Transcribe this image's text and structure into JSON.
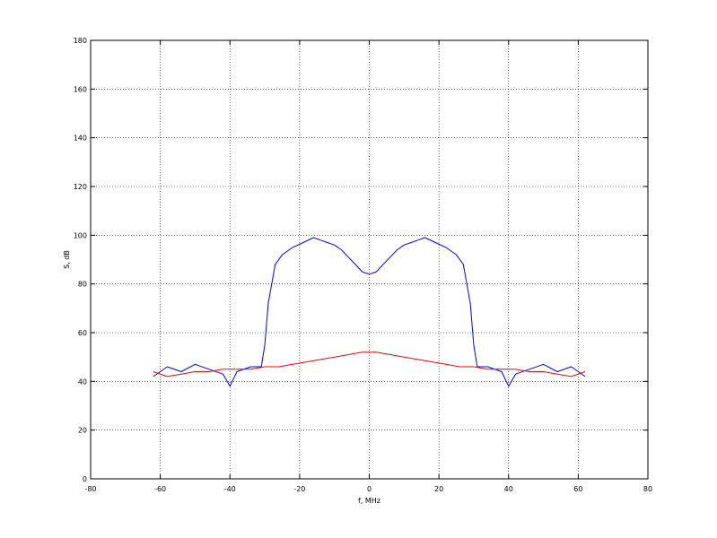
{
  "chart_data": {
    "type": "line",
    "title": "",
    "xlabel": "f, MHz",
    "ylabel": "S, dB",
    "xlim": [
      -80,
      80
    ],
    "ylim": [
      0,
      180
    ],
    "xticks": [
      -80,
      -60,
      -40,
      -20,
      0,
      20,
      40,
      60,
      80
    ],
    "yticks": [
      0,
      20,
      40,
      60,
      80,
      100,
      120,
      140,
      160,
      180
    ],
    "grid": true,
    "series": [
      {
        "color": "#0000ff",
        "x": [
          -62,
          -58,
          -54,
          -50,
          -46,
          -42,
          -40,
          -38,
          -34,
          -31,
          -30,
          -29,
          -28,
          -27,
          -25,
          -22,
          -19,
          -16,
          -14,
          -12,
          -10,
          -8,
          -6,
          -4,
          -2,
          0,
          2,
          4,
          6,
          8,
          10,
          12,
          14,
          16,
          19,
          22,
          25,
          27,
          28,
          29,
          30,
          31,
          34,
          38,
          40,
          42,
          46,
          50,
          54,
          58,
          62
        ],
        "y": [
          42,
          46,
          44,
          47,
          45,
          43,
          38,
          44,
          46,
          46,
          55,
          72,
          80,
          88,
          92,
          95,
          97,
          99,
          98,
          97,
          96,
          94,
          91,
          88,
          85,
          84,
          85,
          88,
          91,
          94,
          96,
          97,
          98,
          99,
          97,
          95,
          92,
          88,
          80,
          72,
          55,
          46,
          46,
          44,
          38,
          43,
          45,
          47,
          44,
          46,
          42
        ]
      },
      {
        "color": "#ff0000",
        "x": [
          -62,
          -58,
          -54,
          -50,
          -46,
          -42,
          -38,
          -34,
          -30,
          -26,
          -22,
          -18,
          -14,
          -10,
          -6,
          -2,
          0,
          2,
          6,
          10,
          14,
          18,
          22,
          26,
          30,
          34,
          38,
          42,
          46,
          50,
          54,
          58,
          62
        ],
        "y": [
          44,
          42,
          43,
          44,
          44,
          45,
          45,
          45,
          46,
          46,
          47,
          48,
          49,
          50,
          51,
          52,
          52,
          52,
          51,
          50,
          49,
          48,
          47,
          46,
          46,
          45,
          45,
          45,
          44,
          44,
          43,
          42,
          44
        ]
      }
    ]
  }
}
